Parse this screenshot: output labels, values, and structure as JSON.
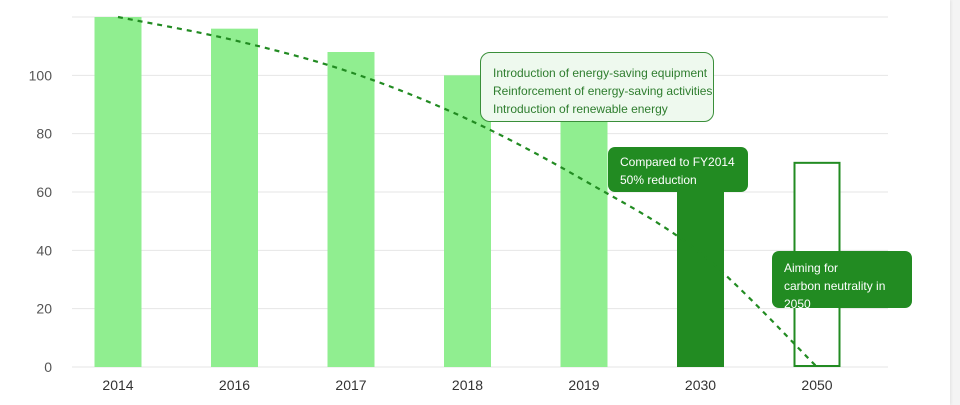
{
  "chart_data": {
    "type": "bar",
    "categories": [
      "2014",
      "2016",
      "2017",
      "2018",
      "2019",
      "2030",
      "2050"
    ],
    "values": [
      120,
      116,
      108,
      100,
      92,
      60,
      70
    ],
    "bar_styles": [
      "past",
      "past",
      "past",
      "past",
      "past",
      "target",
      "outline"
    ],
    "trend_line": [
      120,
      112,
      101,
      85,
      64,
      39,
      0
    ],
    "trend_style": "dashed",
    "ylim": [
      0,
      120
    ],
    "yticks": [
      0,
      20,
      40,
      60,
      80,
      100
    ],
    "grid": true,
    "title": "",
    "xlabel": "",
    "ylabel": "",
    "annotations": [
      {
        "id": "measures",
        "lines": [
          "Introduction of energy-saving equipment",
          "Reinforcement of energy-saving activities",
          "Introduction of renewable energy"
        ]
      },
      {
        "id": "target_2030",
        "lines": [
          "Compared to FY2014",
          "50% reduction"
        ]
      },
      {
        "id": "target_2050",
        "lines": [
          "Aiming for",
          "carbon neutrality in",
          "2050"
        ]
      }
    ]
  },
  "colors": {
    "past": "#90ee90",
    "target": "#228b22",
    "outline": "#228b22",
    "trend": "#228b22",
    "grid": "#e6e6e6"
  }
}
